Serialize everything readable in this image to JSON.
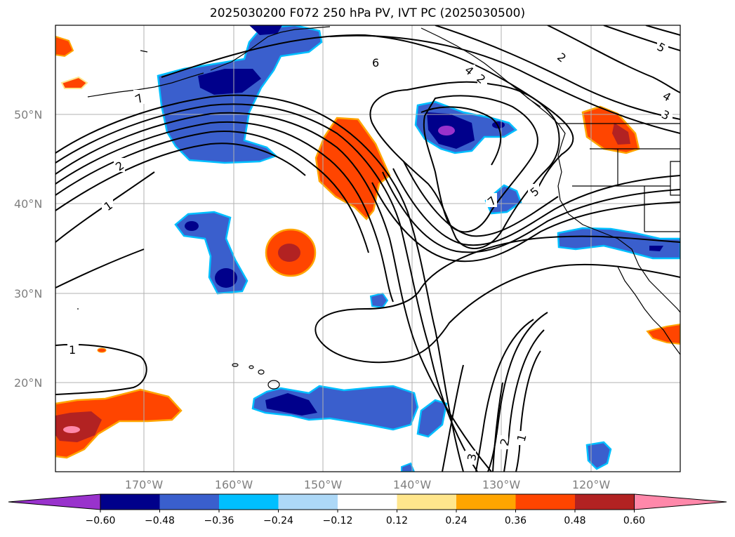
{
  "title": "2025030200 F072 250 hPa PV, IVT PC (2025030500)",
  "lat_labels": [
    "50°N",
    "40°N",
    "30°N",
    "20°N"
  ],
  "lon_labels": [
    "170°W",
    "160°W",
    "150°W",
    "140°W",
    "130°W",
    "120°W"
  ],
  "colorbar": {
    "ticks": [
      "−0.60",
      "−0.48",
      "−0.36",
      "−0.24",
      "−0.12",
      "0.12",
      "0.24",
      "0.36",
      "0.48",
      "0.60"
    ],
    "colors": [
      "#9932CC",
      "#00008B",
      "#3A5FCD",
      "#00BFFF",
      "#ADD8F7",
      "#FFFFFF",
      "#FFE68C",
      "#FFA500",
      "#FF4500",
      "#B22222",
      "#FF88AA"
    ]
  },
  "contour_labels": [
    "6",
    "7",
    "2",
    "1",
    "1",
    "7",
    "5",
    "2",
    "5",
    "4",
    "3",
    "3",
    "2",
    "1",
    "4",
    "2"
  ]
}
